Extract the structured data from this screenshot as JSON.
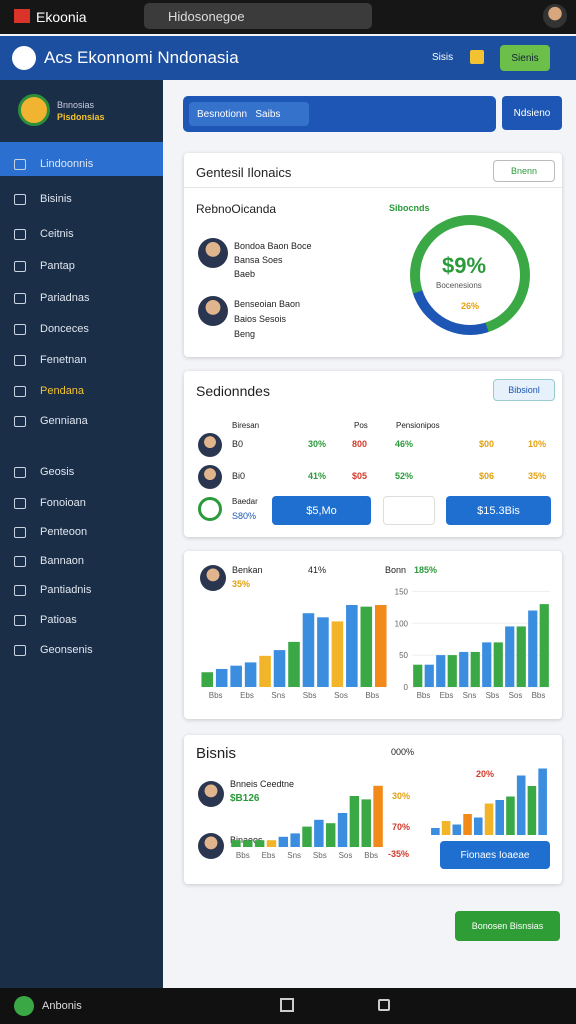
{
  "status": {
    "app": "Ekoonia",
    "search": "Hidosonegoe"
  },
  "header": {
    "title": "Acs Ekonnomi Nndonasia",
    "badge": "Sisis",
    "user": "Sienis"
  },
  "sidebar": {
    "logo": [
      "Bnnosias",
      "Pisdonsias"
    ],
    "items": [
      "Lindoonnis",
      "Bisinis",
      "Ceitnis",
      "Pantap",
      "Pariadnas",
      "Donceces",
      "Fenetnan",
      "Pendana",
      "Genniana",
      "Geosis",
      "Fonoioan",
      "Penteoon",
      "Bannaon",
      "Pantiadnis",
      "Patioas",
      "Geonsenis"
    ]
  },
  "toolbar": {
    "select": "Besnotionn",
    "chip": "Saibs",
    "button": "Ndsieno"
  },
  "card1": {
    "title": "Gentesil Ilonaics",
    "button": "Bnenn",
    "subtitle": "RebnoOicanda",
    "tag": "Sibocnds",
    "people": [
      {
        "name": "Bondoa Baon Boce",
        "line2": "Bansa Soes",
        "line3": "Baeb"
      },
      {
        "name": "Benseoian Baon",
        "line2": "Baios Sesois",
        "line3": "Beng"
      }
    ],
    "donut": {
      "value": "$9%",
      "label": "Bocenesions",
      "sub": "26%"
    }
  },
  "card2": {
    "title": "Sedionndes",
    "button": "Bibsionl",
    "headers": [
      "Biresan",
      "Pos",
      "Pensionipos"
    ],
    "rows": [
      [
        "B0",
        "30%",
        "800",
        "46%",
        "$00",
        "10%"
      ],
      [
        "Bi0",
        "41%",
        "$05",
        "52%",
        "$06",
        "35%"
      ]
    ],
    "footer": {
      "name": "Baedar",
      "value": "S80%",
      "button1": "$5,Mo",
      "button2": "$15.3Bis"
    }
  },
  "card3": {
    "name": "Benkan",
    "pct": "35%",
    "mid": "41%",
    "right_name": "Bonn",
    "right_pct": "185%",
    "chart1": {
      "values": [
        18,
        22,
        26,
        30,
        38,
        45,
        55,
        90,
        85,
        80,
        100,
        98,
        100
      ],
      "colors": [
        "#3aa845",
        "#3b8de0",
        "#3b8de0",
        "#3b8de0",
        "#f2b52a",
        "#3b8de0",
        "#3aa845",
        "#3b8de0",
        "#3b8de0",
        "#f2b52a",
        "#3b8de0",
        "#3aa845",
        "#f28a1a"
      ],
      "ylim": [
        0,
        100
      ],
      "x_labels": [
        "Bbs",
        "Ebs",
        "Sns",
        "Sbs",
        "Sos",
        "Bbs"
      ]
    },
    "chart2": {
      "values": [
        35,
        35,
        50,
        50,
        55,
        55,
        70,
        70,
        95,
        95,
        120,
        130
      ],
      "colors": [
        "#3aa845",
        "#3b8de0",
        "#3b8de0",
        "#3aa845",
        "#3b8de0",
        "#3aa845",
        "#3b8de0",
        "#3aa845",
        "#3b8de0",
        "#3aa845",
        "#3b8de0",
        "#3aa845"
      ],
      "ylim": [
        0,
        160
      ],
      "yticks": [
        0,
        50,
        100,
        150
      ],
      "x_labels": [
        "Bbs",
        "Ebs",
        "Sns",
        "Sbs",
        "Sos",
        "Bbs"
      ]
    }
  },
  "card4": {
    "title": "Bisnis",
    "pct": "000%",
    "name1": "Bnneis Ceedtne",
    "value1": "$B126",
    "name2": "Binaeos",
    "labels": [
      "20%",
      "30%",
      "70%",
      "-35%"
    ],
    "button": "Fionaes Ioaeae",
    "chart3": {
      "values": [
        10,
        10,
        10,
        10,
        15,
        20,
        30,
        40,
        35,
        50,
        75,
        70,
        90
      ],
      "colors": [
        "#3aa845",
        "#3aa845",
        "#3aa845",
        "#f2b52a",
        "#3b8de0",
        "#3b8de0",
        "#3aa845",
        "#3b8de0",
        "#3aa845",
        "#3b8de0",
        "#3aa845",
        "#3aa845",
        "#f28a1a"
      ],
      "ylim": [
        0,
        100
      ],
      "x_labels": [
        "Bbs",
        "Ebs",
        "Sns",
        "Sbs",
        "Sos",
        "Bbs"
      ]
    },
    "chart4": {
      "values": [
        10,
        20,
        15,
        30,
        25,
        45,
        50,
        55,
        85,
        70,
        95
      ],
      "colors": [
        "#3b8de0",
        "#f2b52a",
        "#3b8de0",
        "#f28a1a",
        "#3b8de0",
        "#f2b52a",
        "#3b8de0",
        "#3aa845",
        "#3b8de0",
        "#3aa845",
        "#3b8de0"
      ],
      "ylim": [
        0,
        100
      ]
    }
  },
  "fab": "Bonosen Bisnsias",
  "bottom": "Anbonis"
}
